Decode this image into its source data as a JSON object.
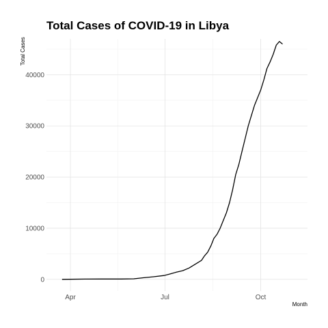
{
  "chart_data": {
    "type": "line",
    "title": "Total Cases of COVID-19 in Libya",
    "xlabel": "Month",
    "ylabel": "Total Cases",
    "grid": true,
    "legend": "none",
    "x_ticks": [
      "Apr",
      "Jul",
      "Oct"
    ],
    "x_tick_dates": [
      "2020-04-01",
      "2020-07-01",
      "2020-10-01"
    ],
    "xlim": [
      "2020-03-09",
      "2020-11-15"
    ],
    "y_ticks": [
      0,
      10000,
      20000,
      30000,
      40000
    ],
    "ylim": [
      -2300,
      47000
    ],
    "series": [
      {
        "color": "#000000",
        "x": [
          "2020-03-24",
          "2020-04-15",
          "2020-05-01",
          "2020-05-20",
          "2020-06-01",
          "2020-06-10",
          "2020-06-20",
          "2020-06-30",
          "2020-07-05",
          "2020-07-12",
          "2020-07-18",
          "2020-07-24",
          "2020-07-28",
          "2020-08-01",
          "2020-08-05",
          "2020-08-08",
          "2020-08-11",
          "2020-08-14",
          "2020-08-17",
          "2020-08-20",
          "2020-08-23",
          "2020-08-26",
          "2020-08-29",
          "2020-09-01",
          "2020-09-04",
          "2020-09-07",
          "2020-09-10",
          "2020-09-13",
          "2020-09-16",
          "2020-09-19",
          "2020-09-22",
          "2020-09-25",
          "2020-09-28",
          "2020-10-01",
          "2020-10-04",
          "2020-10-07",
          "2020-10-10",
          "2020-10-13",
          "2020-10-16",
          "2020-10-19",
          "2020-10-22"
        ],
        "values": [
          0,
          50,
          63,
          68,
          100,
          300,
          500,
          750,
          1000,
          1400,
          1700,
          2200,
          2700,
          3200,
          3700,
          4600,
          5300,
          6500,
          8000,
          8800,
          10000,
          11500,
          13000,
          15000,
          17500,
          20500,
          22500,
          25000,
          27500,
          30000,
          32000,
          34000,
          35500,
          37000,
          39000,
          41200,
          42500,
          44000,
          45800,
          46500,
          46000
        ]
      }
    ]
  }
}
